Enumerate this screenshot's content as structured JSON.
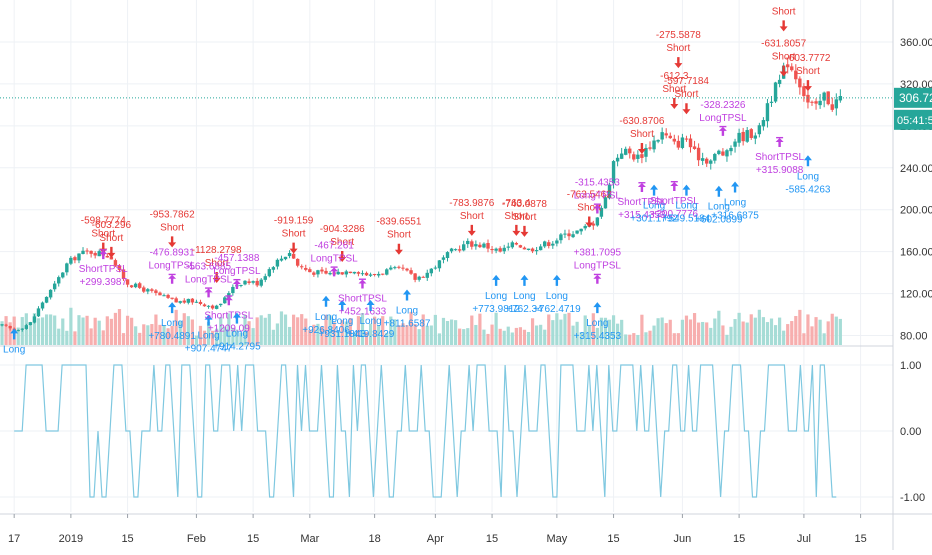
{
  "colors": {
    "up": "#26a69a",
    "down": "#ef5350",
    "vol_up": "#a6dcd6",
    "vol_down": "#f7aeae",
    "long_sig": "#2196f3",
    "short_sig": "#e53935",
    "tpsl_sig": "#c040e0",
    "osc_line": "#7fc8e0",
    "price_line": "#26a69a",
    "grid": "#eef1f5",
    "axis_text": "#333333"
  },
  "price_tag": {
    "value": "306.72",
    "countdown": "05:41:57"
  },
  "chart_data": [
    {
      "type": "candlestick",
      "title": "",
      "y_ticks": [
        80,
        120,
        160,
        200,
        240,
        280,
        320,
        360
      ],
      "y_tick_labels": [
        "80.00",
        "120.00",
        "160.00",
        "200.00",
        "240.00",
        "280.00",
        "320.00",
        "360.00"
      ],
      "x_tick_labels": [
        {
          "day": 0,
          "label": "17"
        },
        {
          "day": 14,
          "label": "2019"
        },
        {
          "day": 28,
          "label": "15"
        },
        {
          "day": 45,
          "label": "Feb"
        },
        {
          "day": 59,
          "label": "15"
        },
        {
          "day": 73,
          "label": "Mar"
        },
        {
          "day": 89,
          "label": "18"
        },
        {
          "day": 104,
          "label": "Apr"
        },
        {
          "day": 118,
          "label": "15"
        },
        {
          "day": 134,
          "label": "May"
        },
        {
          "day": 148,
          "label": "15"
        },
        {
          "day": 165,
          "label": "Jun"
        },
        {
          "day": 179,
          "label": "15"
        },
        {
          "day": 195,
          "label": "Jul"
        },
        {
          "day": 209,
          "label": "15"
        }
      ],
      "x_range": [
        -3.5,
        217
      ],
      "y_range": [
        71,
        400
      ],
      "anchors": [
        [
          -5,
          92
        ],
        [
          0,
          85
        ],
        [
          4,
          92
        ],
        [
          7,
          112
        ],
        [
          10,
          128
        ],
        [
          13,
          148
        ],
        [
          16,
          158
        ],
        [
          19,
          160
        ],
        [
          22,
          158
        ],
        [
          24,
          155
        ],
        [
          26,
          140
        ],
        [
          28,
          130
        ],
        [
          32,
          124
        ],
        [
          36,
          118
        ],
        [
          40,
          112
        ],
        [
          44,
          113
        ],
        [
          47,
          110
        ],
        [
          50,
          107
        ],
        [
          52,
          115
        ],
        [
          54,
          128
        ],
        [
          57,
          132
        ],
        [
          60,
          130
        ],
        [
          64,
          148
        ],
        [
          68,
          160
        ],
        [
          70,
          147
        ],
        [
          73,
          141
        ],
        [
          77,
          139
        ],
        [
          80,
          140
        ],
        [
          84,
          143
        ],
        [
          88,
          137
        ],
        [
          92,
          142
        ],
        [
          96,
          143
        ],
        [
          99,
          134
        ],
        [
          102,
          140
        ],
        [
          105,
          150
        ],
        [
          108,
          160
        ],
        [
          112,
          168
        ],
        [
          116,
          166
        ],
        [
          120,
          160
        ],
        [
          124,
          168
        ],
        [
          127,
          162
        ],
        [
          130,
          166
        ],
        [
          133,
          170
        ],
        [
          137,
          178
        ],
        [
          140,
          180
        ],
        [
          143,
          188
        ],
        [
          146,
          210
        ],
        [
          148,
          246
        ],
        [
          150,
          257
        ],
        [
          154,
          250
        ],
        [
          157,
          262
        ],
        [
          160,
          273
        ],
        [
          163,
          262
        ],
        [
          166,
          268
        ],
        [
          168,
          253
        ],
        [
          172,
          247
        ],
        [
          174,
          255
        ],
        [
          176,
          252
        ],
        [
          178,
          268
        ],
        [
          181,
          272
        ],
        [
          184,
          276
        ],
        [
          186,
          302
        ],
        [
          189,
          322
        ],
        [
          191,
          342
        ],
        [
          194,
          322
        ],
        [
          196,
          302
        ],
        [
          198,
          296
        ],
        [
          200,
          309
        ],
        [
          202,
          300
        ],
        [
          204,
          307
        ]
      ],
      "volume_rel": [
        0.3,
        0.4,
        0.6,
        0.5,
        0.7,
        1.0,
        0.5,
        0.8,
        0.6,
        0.9,
        0.4,
        0.3
      ],
      "osc_levels": [
        1.0,
        0.0,
        -1.0
      ],
      "osc_tick_labels": [
        "1.00",
        "0.00",
        "-1.00"
      ],
      "osc_series": [
        0,
        0,
        0,
        1,
        1,
        1,
        1,
        1,
        0,
        0,
        0,
        0,
        1,
        1,
        1,
        1,
        1,
        1,
        1,
        -1,
        -1,
        0,
        -1,
        -1,
        0,
        1,
        1,
        1,
        0,
        0,
        -1,
        -1,
        0,
        0,
        0,
        1,
        0,
        0,
        1,
        1,
        0,
        -1,
        1,
        1,
        1,
        0,
        -1,
        -1,
        1,
        1,
        0,
        0,
        1,
        1,
        1,
        0,
        1,
        0,
        1,
        1,
        1,
        0,
        0,
        0,
        -1,
        -1,
        0,
        1,
        1,
        0,
        -1,
        1,
        0,
        1,
        0,
        0,
        0,
        1,
        0,
        -1,
        -1,
        1,
        0,
        0,
        -1,
        1,
        0,
        1,
        1,
        0,
        -1,
        0,
        1,
        0,
        -1,
        -1,
        0,
        0,
        1,
        0,
        0,
        0,
        1,
        0,
        0,
        -1,
        -1,
        -1,
        0,
        1,
        0,
        -1,
        0,
        0,
        1,
        0,
        1,
        1,
        1,
        0,
        0,
        0,
        -1,
        1,
        0,
        0,
        -1,
        0,
        1,
        0,
        0,
        0,
        1,
        1,
        0,
        -1,
        -1,
        1,
        1,
        1,
        1,
        0,
        0,
        0,
        1,
        0,
        1,
        0,
        -1,
        1,
        0,
        0,
        1,
        1,
        1,
        1,
        0,
        1,
        0,
        0,
        1,
        0,
        -1,
        0,
        0,
        1,
        1,
        0,
        0,
        1,
        0,
        0,
        1,
        1,
        1,
        1,
        0,
        -1,
        0,
        0,
        1,
        1,
        1,
        0,
        0,
        -1,
        -1,
        0,
        0,
        1,
        1,
        1,
        1,
        1,
        0,
        0,
        0,
        1,
        0,
        0,
        1,
        -1,
        1,
        1,
        0,
        -1,
        -1
      ],
      "signals": [
        {
          "kind": "long",
          "day": 0,
          "price": 85,
          "label": "Long",
          "value": ""
        },
        {
          "kind": "short",
          "day": 22,
          "price": 160,
          "label": "Short",
          "value": "-598.7774"
        },
        {
          "kind": "short",
          "day": 24,
          "price": 156,
          "label": "Short",
          "value": "-603.296"
        },
        {
          "kind": "tpsl_short",
          "day": 22,
          "price": 150,
          "label": "ShortTPSL",
          "value": "+299.3987"
        },
        {
          "kind": "short",
          "day": 39,
          "price": 166,
          "label": "Short",
          "value": "-953.7862"
        },
        {
          "kind": "tpsl_long",
          "day": 39,
          "price": 138,
          "label": "LongTPSL",
          "value": "-476.8931"
        },
        {
          "kind": "long",
          "day": 39,
          "price": 110,
          "label": "Long",
          "value": "+780.4891"
        },
        {
          "kind": "short",
          "day": 50,
          "price": 132,
          "label": "Short",
          "value": "-1128.2798"
        },
        {
          "kind": "tpsl_long",
          "day": 48,
          "price": 125,
          "label": "LongTPSL",
          "value": "-563.6885"
        },
        {
          "kind": "long",
          "day": 48,
          "price": 98,
          "label": "Long",
          "value": "+907.4747"
        },
        {
          "kind": "tpsl_long",
          "day": 55,
          "price": 133,
          "label": "LongTPSL",
          "value": "-457.1388"
        },
        {
          "kind": "tpsl_short",
          "day": 53,
          "price": 106,
          "label": "ShortTPSL",
          "value": "+1209.09"
        },
        {
          "kind": "long",
          "day": 55,
          "price": 100,
          "label": "Long",
          "value": "+914.2795"
        },
        {
          "kind": "short",
          "day": 69,
          "price": 160,
          "label": "Short",
          "value": "-919.159"
        },
        {
          "kind": "short",
          "day": 81,
          "price": 152,
          "label": "Short",
          "value": "-904.3286"
        },
        {
          "kind": "tpsl_long",
          "day": 79,
          "price": 145,
          "label": "LongTPSL",
          "value": "-467.261"
        },
        {
          "kind": "long",
          "day": 77,
          "price": 116,
          "label": "Long",
          "value": "+926.8406"
        },
        {
          "kind": "long",
          "day": 81,
          "price": 112,
          "label": "Long",
          "value": "+931.1843"
        },
        {
          "kind": "tpsl_short",
          "day": 86,
          "price": 122,
          "label": "ShortTPSL",
          "value": "+452.1633"
        },
        {
          "kind": "long",
          "day": 88,
          "price": 112,
          "label": "Long",
          "value": "+419.8429"
        },
        {
          "kind": "short",
          "day": 95,
          "price": 159,
          "label": "Short",
          "value": "-839.6551"
        },
        {
          "kind": "long",
          "day": 97,
          "price": 122,
          "label": "Long",
          "value": "+811.6587"
        },
        {
          "kind": "short",
          "day": 113,
          "price": 177,
          "label": "Short",
          "value": "-783.9876"
        },
        {
          "kind": "long",
          "day": 119,
          "price": 136,
          "label": "Long",
          "value": "+773.9812"
        },
        {
          "kind": "short",
          "day": 124,
          "price": 177,
          "label": "Short",
          "value": "-763.4"
        },
        {
          "kind": "short",
          "day": 126,
          "price": 176,
          "label": "Short",
          "value": "-740.0878"
        },
        {
          "kind": "long",
          "day": 126,
          "price": 136,
          "label": "Long",
          "value": "+762.34"
        },
        {
          "kind": "long",
          "day": 134,
          "price": 136,
          "label": "Long",
          "value": "+762.4719"
        },
        {
          "kind": "short",
          "day": 142,
          "price": 185,
          "label": "Short",
          "value": "-763.5462"
        },
        {
          "kind": "tpsl_long",
          "day": 144,
          "price": 205,
          "label": "LongTPSL",
          "value": "-315.4353"
        },
        {
          "kind": "tpsl_long",
          "day": 144,
          "price": 138,
          "label": "LongTPSL",
          "value": "+381.7095"
        },
        {
          "kind": "long",
          "day": 144,
          "price": 110,
          "label": "Long",
          "value": "+315.4353"
        },
        {
          "kind": "short",
          "day": 155,
          "price": 255,
          "label": "Short",
          "value": "-630.8706"
        },
        {
          "kind": "short",
          "day": 163,
          "price": 298,
          "label": "Short",
          "value": "-612.3"
        },
        {
          "kind": "short",
          "day": 164,
          "price": 337,
          "label": "Short",
          "value": "-275.5878"
        },
        {
          "kind": "short",
          "day": 166,
          "price": 293,
          "label": "Short",
          "value": "-597.7184"
        },
        {
          "kind": "tpsl_short",
          "day": 155,
          "price": 214,
          "label": "ShortTPSL",
          "value": "+315.4353"
        },
        {
          "kind": "long",
          "day": 158,
          "price": 222,
          "label": "Long",
          "value": "+301.1792"
        },
        {
          "kind": "tpsl_short",
          "day": 163,
          "price": 215,
          "label": "ShortTPSL",
          "value": "+300.7776"
        },
        {
          "kind": "long",
          "day": 166,
          "price": 222,
          "label": "Long",
          "value": "+549.5184"
        },
        {
          "kind": "tpsl_long",
          "day": 175,
          "price": 279,
          "label": "LongTPSL",
          "value": "-328.2326"
        },
        {
          "kind": "long",
          "day": 174,
          "price": 221,
          "label": "Long",
          "value": "+602.0899"
        },
        {
          "kind": "long",
          "day": 178,
          "price": 225,
          "label": "Long",
          "value": "+316.6875"
        },
        {
          "kind": "short",
          "day": 190,
          "price": 372,
          "label": "Short",
          "value": ""
        },
        {
          "kind": "short",
          "day": 190,
          "price": 329,
          "label": "Short",
          "value": "-631.8057"
        },
        {
          "kind": "short",
          "day": 196,
          "price": 315,
          "label": "Short",
          "value": "-603.7772"
        },
        {
          "kind": "tpsl_short",
          "day": 189,
          "price": 257,
          "label": "ShortTPSL",
          "value": "+315.9088"
        },
        {
          "kind": "long",
          "day": 196,
          "price": 250,
          "label": "Long",
          "value": "-585.4263"
        }
      ]
    }
  ]
}
